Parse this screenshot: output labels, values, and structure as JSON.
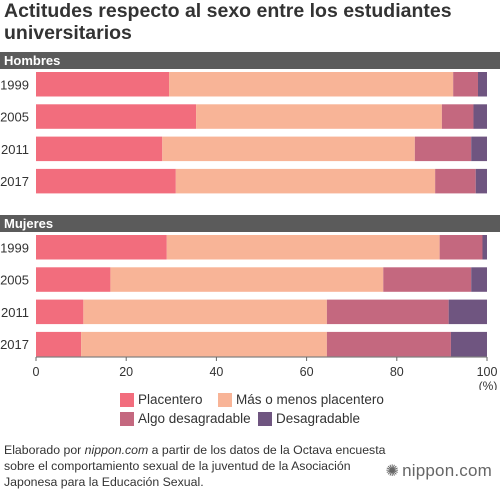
{
  "title": "Actitudes respecto al sexo entre los estudiantes universitarios",
  "chart_data": {
    "type": "bar",
    "orientation": "horizontal",
    "stacked": true,
    "title": "Actitudes respecto al sexo entre los estudiantes universitarios",
    "unit_label": "(%)",
    "xlim": [
      0,
      100
    ],
    "xticks": [
      0,
      20,
      40,
      60,
      80,
      100
    ],
    "grid": false,
    "legend_position": "bottom",
    "colors": {
      "Placentero": "#f26d7d",
      "Más o menos placentero": "#f8b497",
      "Algo desagradable": "#c4687f",
      "Desagradable": "#6f5580",
      "group_header": "#5b5b5b"
    },
    "series_names": [
      "Placentero",
      "Más o menos placentero",
      "Algo desagradable",
      "Desagradable"
    ],
    "groups": [
      {
        "name": "Hombres",
        "rows": [
          {
            "year": "1999",
            "values": [
              29.5,
              63,
              5.5,
              2
            ]
          },
          {
            "year": "2005",
            "values": [
              35.5,
              54.5,
              7,
              3
            ]
          },
          {
            "year": "2011",
            "values": [
              28,
              56,
              12.5,
              3.5
            ]
          },
          {
            "year": "2017",
            "values": [
              31,
              57.5,
              9,
              2.5
            ]
          }
        ]
      },
      {
        "name": "Mujeres",
        "rows": [
          {
            "year": "1999",
            "values": [
              29,
              60.5,
              9.5,
              1
            ]
          },
          {
            "year": "2005",
            "values": [
              16.5,
              60.5,
              19.5,
              3.5
            ]
          },
          {
            "year": "2011",
            "values": [
              10.5,
              54,
              27,
              8.5
            ]
          },
          {
            "year": "2017",
            "values": [
              10,
              54.5,
              27.5,
              8
            ]
          }
        ]
      }
    ]
  },
  "footer": {
    "prefix": "Elaborado por ",
    "source_site": "nippon.com",
    "suffix": " a partir de los datos de la Octava encuesta sobre el comportamiento sexual de la juventud de la Asociación Japonesa para la Educación Sexual."
  },
  "brand": {
    "text": "nippon.com",
    "icon": "sun-burst-icon"
  }
}
